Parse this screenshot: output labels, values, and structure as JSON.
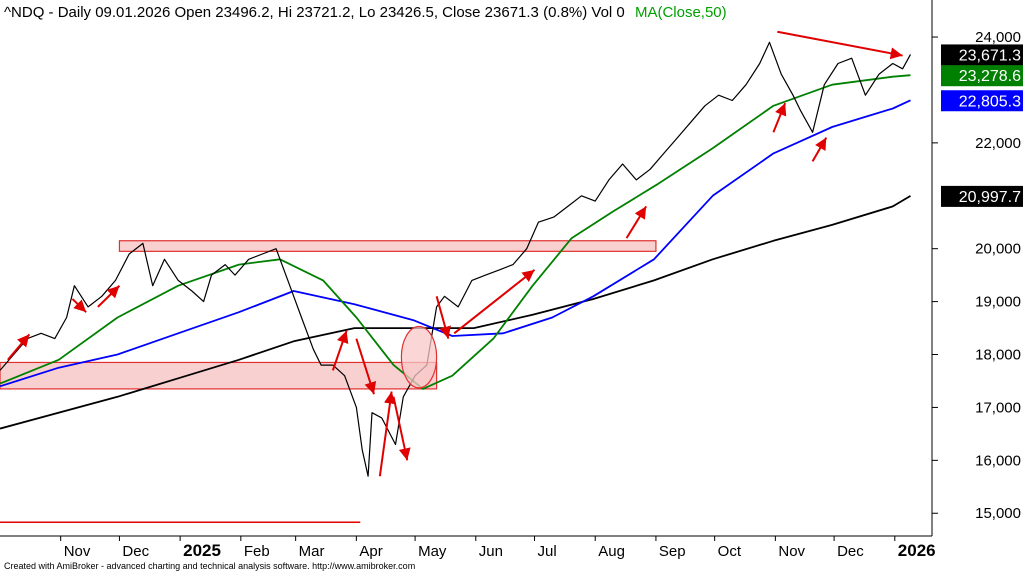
{
  "header": {
    "symbol_line": "^NDQ - Daily 09.01.2026 Open 23496.2, Hi 23721.2, Lo 23426.5, Close 23671.3 (0.8%) Vol 0",
    "ma_label": "MA(Close,50)",
    "ma_color": "#00a000"
  },
  "footer": {
    "text": "Created with AmiBroker - advanced charting and technical analysis software. http://www.amibroker.com"
  },
  "colors": {
    "price": "#000000",
    "ma50": "#008000",
    "ma100": "#0000ff",
    "ma200": "#000000",
    "zone_fill": "#f8c8c8",
    "zone_stroke": "#e03030",
    "arrow": "#e00000"
  },
  "chart_data": {
    "type": "line",
    "y_ticks": [
      {
        "value": 24000,
        "label": "24,000"
      },
      {
        "value": 22000,
        "label": "22,000"
      },
      {
        "value": 20000,
        "label": "20,000"
      },
      {
        "value": 19000,
        "label": "19,000"
      },
      {
        "value": 18000,
        "label": "18,000"
      },
      {
        "value": 17000,
        "label": "17,000"
      },
      {
        "value": 16000,
        "label": "16,000"
      },
      {
        "value": 15000,
        "label": "15,000"
      }
    ],
    "ylim": [
      14570,
      24700
    ],
    "xlim": [
      "2024-10-01",
      "2026-01-20"
    ],
    "x_ticks": [
      {
        "date": "2024-11-01",
        "label": "Nov",
        "bold": false
      },
      {
        "date": "2024-12-01",
        "label": "Dec",
        "bold": false
      },
      {
        "date": "2025-01-01",
        "label": "2025",
        "bold": true
      },
      {
        "date": "2025-02-01",
        "label": "Feb",
        "bold": false
      },
      {
        "date": "2025-03-01",
        "label": "Mar",
        "bold": false
      },
      {
        "date": "2025-04-01",
        "label": "Apr",
        "bold": false
      },
      {
        "date": "2025-05-01",
        "label": "May",
        "bold": false
      },
      {
        "date": "2025-06-01",
        "label": "Jun",
        "bold": false
      },
      {
        "date": "2025-07-01",
        "label": "Jul",
        "bold": false
      },
      {
        "date": "2025-08-01",
        "label": "Aug",
        "bold": false
      },
      {
        "date": "2025-09-01",
        "label": "Sep",
        "bold": false
      },
      {
        "date": "2025-10-01",
        "label": "Oct",
        "bold": false
      },
      {
        "date": "2025-11-01",
        "label": "Nov",
        "bold": false
      },
      {
        "date": "2025-12-01",
        "label": "Dec",
        "bold": false
      },
      {
        "date": "2026-01-01",
        "label": "2026",
        "bold": true
      }
    ],
    "price_badges": [
      {
        "value": 23671.3,
        "label": "23,671.3",
        "color": "#000000"
      },
      {
        "value": 23278.6,
        "label": "23,278.6",
        "color": "#008000"
      },
      {
        "value": 22805.3,
        "label": "22,805.3",
        "color": "#0000ff"
      },
      {
        "value": 20997.7,
        "label": "20,997.7",
        "color": "#000000"
      }
    ],
    "series": [
      {
        "key": "close",
        "points": [
          [
            "2024-10-01",
            17700
          ],
          [
            "2024-10-08",
            18000
          ],
          [
            "2024-10-15",
            18300
          ],
          [
            "2024-10-22",
            18400
          ],
          [
            "2024-10-29",
            18300
          ],
          [
            "2024-11-04",
            18700
          ],
          [
            "2024-11-08",
            19300
          ],
          [
            "2024-11-15",
            18900
          ],
          [
            "2024-11-22",
            19100
          ],
          [
            "2024-11-29",
            19400
          ],
          [
            "2024-12-06",
            19900
          ],
          [
            "2024-12-13",
            20100
          ],
          [
            "2024-12-18",
            19300
          ],
          [
            "2024-12-24",
            19800
          ],
          [
            "2024-12-31",
            19400
          ],
          [
            "2025-01-07",
            19200
          ],
          [
            "2025-01-13",
            19000
          ],
          [
            "2025-01-17",
            19500
          ],
          [
            "2025-01-24",
            19700
          ],
          [
            "2025-01-29",
            19500
          ],
          [
            "2025-02-05",
            19800
          ],
          [
            "2025-02-12",
            19900
          ],
          [
            "2025-02-19",
            20000
          ],
          [
            "2025-02-26",
            19300
          ],
          [
            "2025-03-04",
            18700
          ],
          [
            "2025-03-10",
            18100
          ],
          [
            "2025-03-14",
            17800
          ],
          [
            "2025-03-20",
            17800
          ],
          [
            "2025-03-26",
            17600
          ],
          [
            "2025-04-01",
            17000
          ],
          [
            "2025-04-04",
            16200
          ],
          [
            "2025-04-07",
            15700
          ],
          [
            "2025-04-09",
            16900
          ],
          [
            "2025-04-14",
            16800
          ],
          [
            "2025-04-21",
            16300
          ],
          [
            "2025-04-25",
            17200
          ],
          [
            "2025-05-01",
            17600
          ],
          [
            "2025-05-07",
            17800
          ],
          [
            "2025-05-12",
            18900
          ],
          [
            "2025-05-16",
            19100
          ],
          [
            "2025-05-23",
            18900
          ],
          [
            "2025-05-30",
            19400
          ],
          [
            "2025-06-06",
            19500
          ],
          [
            "2025-06-13",
            19600
          ],
          [
            "2025-06-20",
            19700
          ],
          [
            "2025-06-27",
            20000
          ],
          [
            "2025-07-03",
            20500
          ],
          [
            "2025-07-11",
            20600
          ],
          [
            "2025-07-18",
            20800
          ],
          [
            "2025-07-25",
            21000
          ],
          [
            "2025-08-01",
            20900
          ],
          [
            "2025-08-08",
            21300
          ],
          [
            "2025-08-15",
            21600
          ],
          [
            "2025-08-22",
            21300
          ],
          [
            "2025-08-29",
            21500
          ],
          [
            "2025-09-05",
            21800
          ],
          [
            "2025-09-12",
            22100
          ],
          [
            "2025-09-19",
            22400
          ],
          [
            "2025-09-26",
            22700
          ],
          [
            "2025-10-03",
            22900
          ],
          [
            "2025-10-10",
            22800
          ],
          [
            "2025-10-17",
            23100
          ],
          [
            "2025-10-24",
            23500
          ],
          [
            "2025-10-29",
            23900
          ],
          [
            "2025-11-04",
            23300
          ],
          [
            "2025-11-10",
            22900
          ],
          [
            "2025-11-14",
            22600
          ],
          [
            "2025-11-20",
            22200
          ],
          [
            "2025-11-26",
            23100
          ],
          [
            "2025-12-03",
            23500
          ],
          [
            "2025-12-10",
            23600
          ],
          [
            "2025-12-17",
            22900
          ],
          [
            "2025-12-24",
            23300
          ],
          [
            "2025-12-31",
            23500
          ],
          [
            "2026-01-05",
            23400
          ],
          [
            "2026-01-09",
            23671.3
          ]
        ]
      },
      {
        "key": "ma50",
        "name": "MA(Close,50)",
        "points": [
          [
            "2024-10-01",
            17450
          ],
          [
            "2024-10-31",
            17900
          ],
          [
            "2024-11-30",
            18700
          ],
          [
            "2024-12-31",
            19300
          ],
          [
            "2025-01-31",
            19700
          ],
          [
            "2025-02-21",
            19800
          ],
          [
            "2025-03-15",
            19400
          ],
          [
            "2025-04-01",
            18700
          ],
          [
            "2025-04-20",
            17800
          ],
          [
            "2025-05-05",
            17350
          ],
          [
            "2025-05-20",
            17600
          ],
          [
            "2025-06-10",
            18300
          ],
          [
            "2025-06-30",
            19300
          ],
          [
            "2025-07-20",
            20200
          ],
          [
            "2025-08-10",
            20700
          ],
          [
            "2025-09-01",
            21200
          ],
          [
            "2025-09-30",
            21900
          ],
          [
            "2025-10-31",
            22700
          ],
          [
            "2025-11-30",
            23100
          ],
          [
            "2025-12-31",
            23250
          ],
          [
            "2026-01-09",
            23278.6
          ]
        ]
      },
      {
        "key": "ma100",
        "points": [
          [
            "2024-10-01",
            17400
          ],
          [
            "2024-10-31",
            17750
          ],
          [
            "2024-11-30",
            18000
          ],
          [
            "2024-12-31",
            18400
          ],
          [
            "2025-01-31",
            18800
          ],
          [
            "2025-02-28",
            19200
          ],
          [
            "2025-03-31",
            18950
          ],
          [
            "2025-04-30",
            18650
          ],
          [
            "2025-05-20",
            18350
          ],
          [
            "2025-06-15",
            18400
          ],
          [
            "2025-07-10",
            18700
          ],
          [
            "2025-07-31",
            19100
          ],
          [
            "2025-08-31",
            19800
          ],
          [
            "2025-09-30",
            21000
          ],
          [
            "2025-10-31",
            21800
          ],
          [
            "2025-11-30",
            22300
          ],
          [
            "2025-12-31",
            22650
          ],
          [
            "2026-01-09",
            22805.3
          ]
        ]
      },
      {
        "key": "ma200",
        "points": [
          [
            "2024-10-01",
            16600
          ],
          [
            "2024-11-30",
            17200
          ],
          [
            "2024-12-31",
            17550
          ],
          [
            "2025-01-31",
            17900
          ],
          [
            "2025-02-28",
            18250
          ],
          [
            "2025-03-31",
            18500
          ],
          [
            "2025-04-30",
            18500
          ],
          [
            "2025-05-31",
            18500
          ],
          [
            "2025-06-30",
            18750
          ],
          [
            "2025-07-31",
            19050
          ],
          [
            "2025-08-31",
            19400
          ],
          [
            "2025-09-30",
            19800
          ],
          [
            "2025-10-31",
            20150
          ],
          [
            "2025-11-30",
            20450
          ],
          [
            "2025-12-31",
            20800
          ],
          [
            "2026-01-09",
            20997.7
          ]
        ]
      }
    ],
    "zones": [
      {
        "start": "2024-12-01",
        "end": "2025-09-01",
        "low": 19950,
        "high": 20150
      },
      {
        "start": "2024-10-01",
        "end": "2025-05-12",
        "low": 17350,
        "high": 17850
      }
    ],
    "hlines": [
      {
        "start": "2024-10-01",
        "end": "2025-04-03",
        "value": 14830
      }
    ],
    "ellipses": [
      {
        "center_date": "2025-05-03",
        "center_value": 17950,
        "half_width_days": 9,
        "half_height_value": 580
      }
    ],
    "arrows": [
      [
        "2024-10-05",
        17900,
        "2024-10-16",
        18380
      ],
      [
        "2024-11-07",
        19050,
        "2024-11-14",
        18800
      ],
      [
        "2024-11-20",
        18900,
        "2024-12-01",
        19300
      ],
      [
        "2025-03-20",
        17700,
        "2025-03-27",
        18450
      ],
      [
        "2025-04-01",
        18300,
        "2025-04-10",
        17250
      ],
      [
        "2025-04-13",
        15700,
        "2025-04-19",
        17300
      ],
      [
        "2025-04-20",
        17200,
        "2025-04-27",
        16000
      ],
      [
        "2025-05-12",
        19100,
        "2025-05-18",
        18300
      ],
      [
        "2025-05-21",
        18400,
        "2025-07-01",
        19600
      ],
      [
        "2025-08-17",
        20200,
        "2025-08-27",
        20800
      ],
      [
        "2025-10-31",
        22200,
        "2025-11-06",
        22750
      ],
      [
        "2025-11-20",
        21650,
        "2025-11-27",
        22100
      ],
      [
        "2025-11-02",
        24100,
        "2026-01-05",
        23650
      ]
    ]
  }
}
